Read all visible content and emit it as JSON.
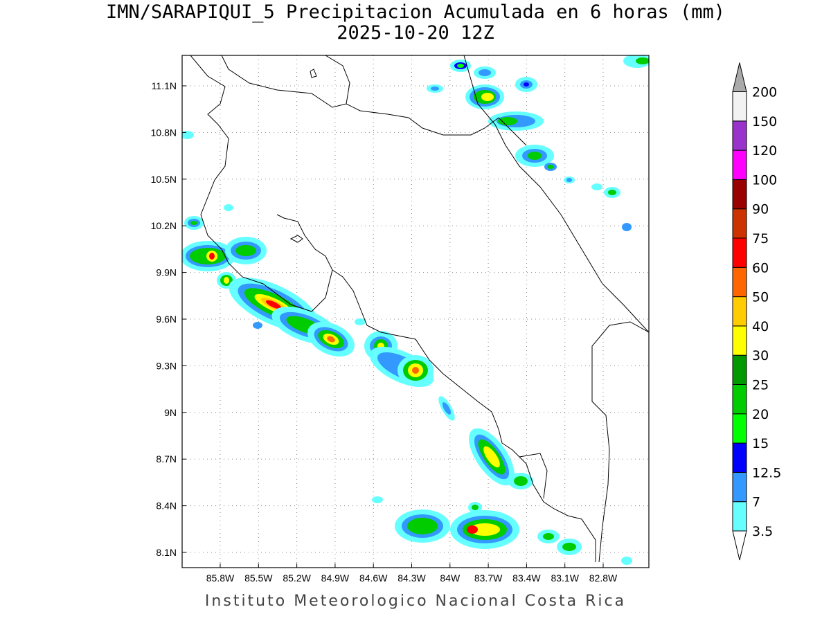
{
  "title": {
    "line1": "IMN/SARAPIQUI_5 Precipitacion Acumulada en 6 horas (mm)",
    "line2": "2025-10-20 12Z"
  },
  "footer": "Instituto Meteorologico Nacional Costa Rica",
  "map": {
    "x_ticks": [
      "85.8W",
      "85.5W",
      "85.2W",
      "84.9W",
      "84.6W",
      "84.3W",
      "84W",
      "83.7W",
      "83.4W",
      "83.1W",
      "82.8W"
    ],
    "y_ticks": [
      "11.1N",
      "10.8N",
      "10.5N",
      "10.2N",
      "9.9N",
      "9.6N",
      "9.3N",
      "9N",
      "8.7N",
      "8.4N",
      "8.1N"
    ]
  },
  "colorbar": {
    "levels": [
      {
        "label": "3.5",
        "color": "#66ffff"
      },
      {
        "label": "7",
        "color": "#3399ff"
      },
      {
        "label": "12.5",
        "color": "#0000ff"
      },
      {
        "label": "15",
        "color": "#00ff00"
      },
      {
        "label": "20",
        "color": "#00cc00"
      },
      {
        "label": "25",
        "color": "#009900"
      },
      {
        "label": "30",
        "color": "#ffff00"
      },
      {
        "label": "40",
        "color": "#ffcc00"
      },
      {
        "label": "50",
        "color": "#ff6600"
      },
      {
        "label": "60",
        "color": "#ff0000"
      },
      {
        "label": "75",
        "color": "#cc3300"
      },
      {
        "label": "90",
        "color": "#990000"
      },
      {
        "label": "100",
        "color": "#ff00ff"
      },
      {
        "label": "120",
        "color": "#9933cc"
      },
      {
        "label": "150",
        "color": "#f2f2f2"
      },
      {
        "label": "200",
        "color": "#aaaaaa"
      }
    ]
  }
}
